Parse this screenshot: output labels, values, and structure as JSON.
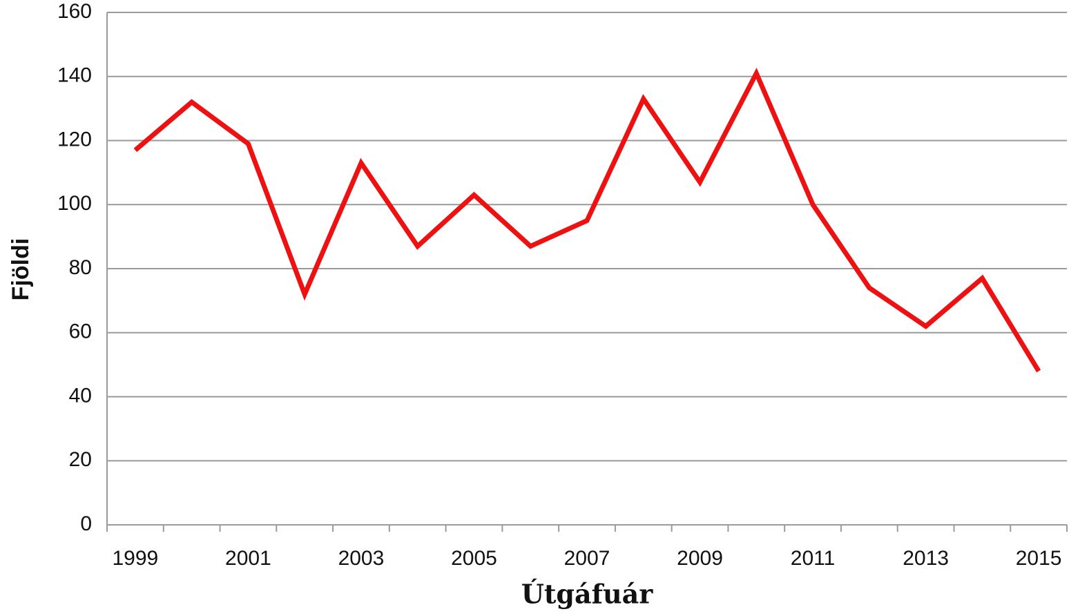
{
  "chart_data": {
    "type": "line",
    "x_label": "Útgáfuár",
    "y_label": "Fjöldi",
    "categories": [
      "1999",
      null,
      "2001",
      null,
      "2003",
      null,
      "2005",
      null,
      "2007",
      null,
      "2009",
      null,
      "2011",
      null,
      "2013",
      null,
      "2015"
    ],
    "series": [
      {
        "name": "Fjöldi",
        "color": "#ee1111",
        "values": [
          117,
          132,
          119,
          72,
          113,
          87,
          103,
          87,
          95,
          133,
          107,
          141,
          100,
          74,
          62,
          77,
          48
        ]
      }
    ],
    "ylim": [
      0,
      160
    ],
    "yticks": [
      0,
      20,
      40,
      60,
      80,
      100,
      120,
      140,
      160
    ],
    "grid": true
  }
}
